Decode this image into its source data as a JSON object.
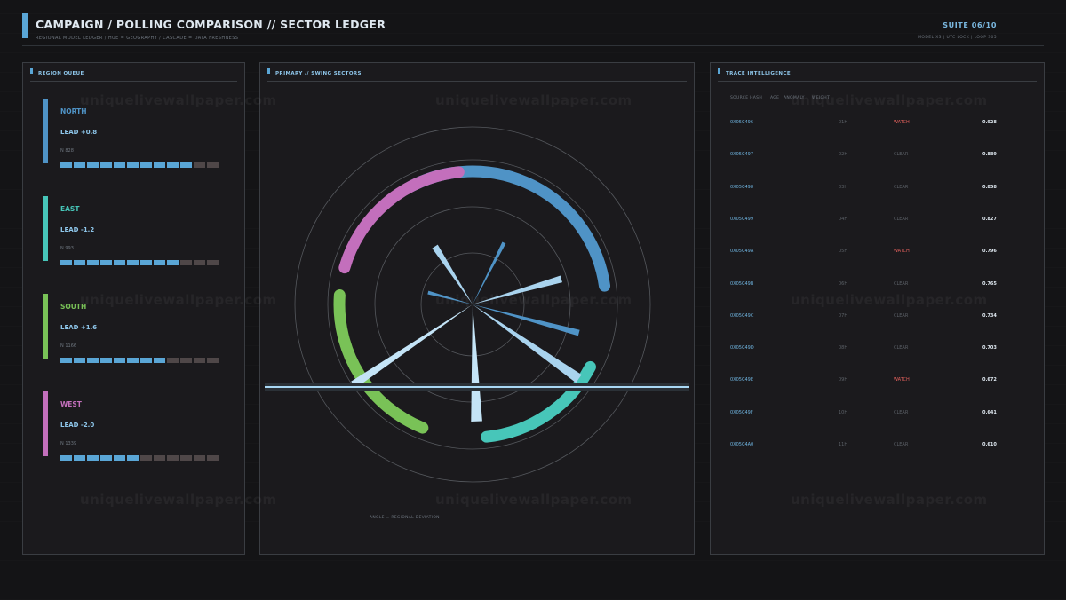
{
  "header": {
    "title": "CAMPAIGN / POLLING COMPARISON  //  SECTOR LEDGER",
    "subtitle": "REGIONAL MODEL LEDGER / HUE = GEOGRAPHY / CASCADE = DATA FRESHNESS",
    "suite": "SUITE 06/10",
    "meta": "MODEL X3  |  UTC LOCK  |  LOOP 305"
  },
  "watermark": "uniquelivewallpaper.com",
  "region_queue": {
    "title": "REGION QUEUE",
    "regions": [
      {
        "name": "NORTH",
        "lead": "LEAD +0.8",
        "n": "N 828",
        "color": "#4f93c6",
        "filled": 10,
        "total": 12
      },
      {
        "name": "EAST",
        "lead": "LEAD -1.2",
        "n": "N 993",
        "color": "#47c6b9",
        "filled": 9,
        "total": 12
      },
      {
        "name": "SOUTH",
        "lead": "LEAD +1.6",
        "n": "N 1166",
        "color": "#79c257",
        "filled": 8,
        "total": 12
      },
      {
        "name": "WEST",
        "lead": "LEAD -2.0",
        "n": "N 1339",
        "color": "#c36fbc",
        "filled": 6,
        "total": 12
      }
    ]
  },
  "primary": {
    "title": "PRIMARY // SWING SECTORS",
    "axis_note": "ANGLE = REGIONAL DEVIATION"
  },
  "chart_data": {
    "type": "radial",
    "arcs": [
      {
        "region": "NORTH",
        "color": "#4f93c6",
        "start_deg": -118,
        "end_deg": -8
      },
      {
        "region": "EAST",
        "color": "#47c6b9",
        "start_deg": 28,
        "end_deg": 84
      },
      {
        "region": "SOUTH",
        "color": "#79c257",
        "start_deg": 112,
        "end_deg": 184
      },
      {
        "region": "WEST",
        "color": "#c36fbc",
        "start_deg": 196,
        "end_deg": 264
      }
    ],
    "spokes": [
      {
        "angle_deg": 15,
        "length": 0.62
      },
      {
        "angle_deg": 35,
        "length": 0.73
      },
      {
        "angle_deg": 88,
        "length": 0.66
      },
      {
        "angle_deg": 146,
        "length": 0.81
      },
      {
        "angle_deg": 195,
        "length": 0.26
      },
      {
        "angle_deg": 237,
        "length": 0.39
      },
      {
        "angle_deg": 297,
        "length": 0.39
      },
      {
        "angle_deg": 344,
        "length": 0.52
      }
    ]
  },
  "trace": {
    "title": "TRACE INTELLIGENCE",
    "columns": [
      "SOURCE HASH",
      "AGE",
      "ANOMALY",
      "WEIGHT"
    ],
    "rows": [
      {
        "hash": "0X05C496",
        "age": "01H",
        "status": "WATCH",
        "weight": "0.928"
      },
      {
        "hash": "0X05C497",
        "age": "02H",
        "status": "CLEAR",
        "weight": "0.889"
      },
      {
        "hash": "0X05C498",
        "age": "03H",
        "status": "CLEAR",
        "weight": "0.858"
      },
      {
        "hash": "0X05C499",
        "age": "04H",
        "status": "CLEAR",
        "weight": "0.827"
      },
      {
        "hash": "0X05C49A",
        "age": "05H",
        "status": "WATCH",
        "weight": "0.796"
      },
      {
        "hash": "0X05C49B",
        "age": "06H",
        "status": "CLEAR",
        "weight": "0.765"
      },
      {
        "hash": "0X05C49C",
        "age": "07H",
        "status": "CLEAR",
        "weight": "0.734"
      },
      {
        "hash": "0X05C49D",
        "age": "08H",
        "status": "CLEAR",
        "weight": "0.703"
      },
      {
        "hash": "0X05C49E",
        "age": "09H",
        "status": "WATCH",
        "weight": "0.672"
      },
      {
        "hash": "0X05C49F",
        "age": "10H",
        "status": "CLEAR",
        "weight": "0.641"
      },
      {
        "hash": "0X05C4A0",
        "age": "11H",
        "status": "CLEAR",
        "weight": "0.610"
      }
    ]
  }
}
